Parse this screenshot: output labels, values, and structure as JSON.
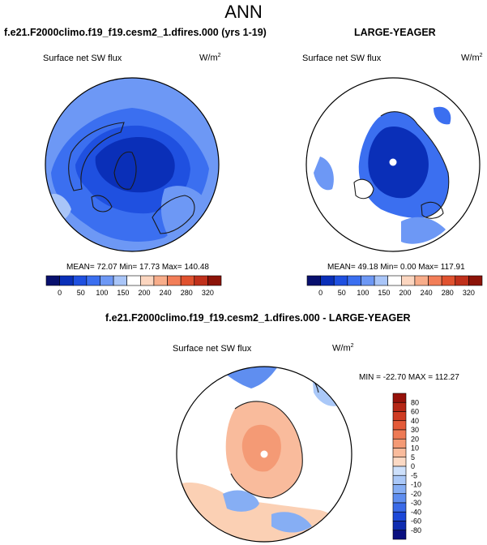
{
  "page": {
    "title": "ANN"
  },
  "panels": [
    {
      "title": "f.e21.F2000climo.f19_f19.cesm2_1.dfires.000 (yrs 1-19)",
      "variable": "Surface net SW flux",
      "units_base": "W/m",
      "units_exp": "2",
      "stats_text": "MEAN= 72.07  Min= 17.73  Max= 140.48"
    },
    {
      "title": "LARGE-YEAGER",
      "variable": "Surface net SW flux",
      "units_base": "W/m",
      "units_exp": "2",
      "stats_text": "MEAN= 49.18  Min=  0.00  Max= 117.91"
    },
    {
      "title": "f.e21.F2000climo.f19_f19.cesm2_1.dfires.000 - LARGE-YEAGER",
      "variable": "Surface net SW flux",
      "units_base": "W/m",
      "units_exp": "2",
      "stats_text": "MIN = -22.70 MAX = 112.27"
    }
  ],
  "colors": {
    "abs_scale": [
      "#08106e",
      "#0a2fb8",
      "#1f50e0",
      "#3b6ff0",
      "#6d98f5",
      "#a9c5f8",
      "#ffffff",
      "#fcd6c0",
      "#f8ad8a",
      "#f27e58",
      "#e0522f",
      "#c0301b",
      "#8c1308"
    ],
    "diff_scale": [
      "#0a1080",
      "#0f2cb0",
      "#1c48d8",
      "#3a6ae8",
      "#5f8ef0",
      "#86aef4",
      "#aac8f8",
      "#cde0fb",
      "#fbd9c4",
      "#f9bb9c",
      "#f49a75",
      "#ee7a55",
      "#e45a38",
      "#cf3b22",
      "#b52615",
      "#96110a"
    ],
    "ocean_diff": "#fbd0b4",
    "coast": "#1a1a1a"
  },
  "chart_data": [
    {
      "type": "heatmap",
      "title": "f.e21.F2000climo.f19_f19.cesm2_1.dfires.000 (yrs 1-19)",
      "subtitle": "Surface net SW flux",
      "units": "W/m2",
      "projection": "north polar stereographic",
      "mean": 72.07,
      "min": 17.73,
      "max": 140.48,
      "colorbar": {
        "levels": [
          0,
          50,
          100,
          150,
          200,
          240,
          280,
          320
        ]
      }
    },
    {
      "type": "heatmap",
      "title": "LARGE-YEAGER",
      "subtitle": "Surface net SW flux",
      "units": "W/m2",
      "projection": "north polar stereographic",
      "mean": 49.18,
      "min": 0.0,
      "max": 117.91,
      "colorbar": {
        "levels": [
          0,
          50,
          100,
          150,
          200,
          240,
          280,
          320
        ]
      }
    },
    {
      "type": "heatmap",
      "title": "f.e21.F2000climo.f19_f19.cesm2_1.dfires.000 - LARGE-YEAGER",
      "subtitle": "Surface net SW flux",
      "units": "W/m2",
      "projection": "north polar stereographic",
      "min": -22.7,
      "max": 112.27,
      "colorbar": {
        "levels": [
          80,
          60,
          40,
          30,
          20,
          10,
          5,
          0,
          -5,
          -10,
          -20,
          -30,
          -40,
          -60,
          -80
        ]
      }
    }
  ]
}
